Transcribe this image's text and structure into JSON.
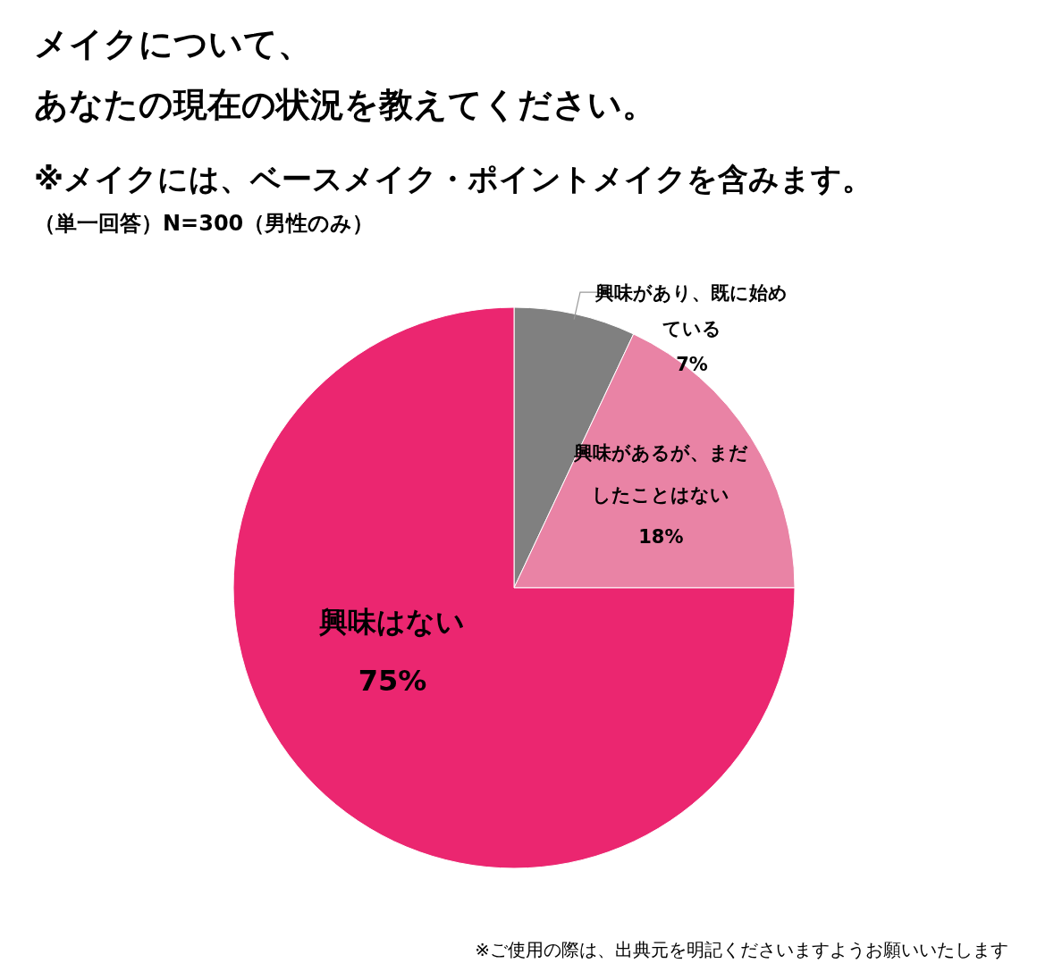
{
  "chart_data": {
    "type": "pie",
    "title": "メイクについて、あなたの現在の状況を教えてください。",
    "subtitle": "※メイクには、ベースメイク・ポイントメイクを含みます。",
    "annotations": [
      "（単一回答）N=300（男性のみ）",
      "※ご使用の際は、出典元を明記くださいますようお願いいたします"
    ],
    "categories": [
      "興味があり、既に始めている",
      "興味があるが、まだしたことはない",
      "興味はない"
    ],
    "values": [
      7,
      18,
      75
    ],
    "value_labels": [
      "7%",
      "18%",
      "75%"
    ],
    "colors": [
      "#808080",
      "#e983a5",
      "#eb2670"
    ]
  }
}
